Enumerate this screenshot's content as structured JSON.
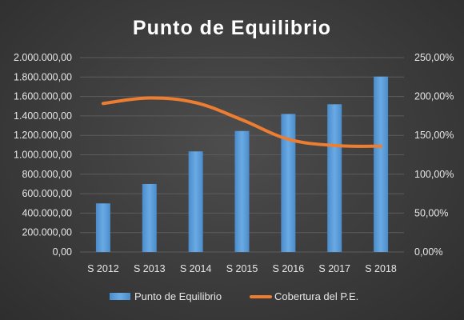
{
  "chart_data": {
    "type": "bar",
    "title": "Punto de Equilibrio",
    "categories": [
      "S 2012",
      "S 2013",
      "S 2014",
      "S 2015",
      "S 2016",
      "S 2017",
      "S 2018"
    ],
    "y_left": {
      "min": 0,
      "max": 2000000,
      "step": 200000,
      "tick_labels": [
        "0,00",
        "200.000,00",
        "400.000,00",
        "600.000,00",
        "800.000,00",
        "1.000.000,00",
        "1.200.000,00",
        "1.400.000,00",
        "1.600.000,00",
        "1.800.000,00",
        "2.000.000,00"
      ]
    },
    "y_right": {
      "min": 0,
      "max": 250,
      "step": 50,
      "unit": "%",
      "tick_labels": [
        "0,00%",
        "50,00%",
        "100,00%",
        "150,00%",
        "200,00%",
        "250,00%"
      ]
    },
    "series": [
      {
        "name": "Punto de Equilibrio",
        "type": "bar",
        "axis": "left",
        "color": "#5b9bd5",
        "values": [
          500000,
          700000,
          1035000,
          1245000,
          1420000,
          1520000,
          1805000
        ]
      },
      {
        "name": "Cobertura del P.E.",
        "type": "line",
        "axis": "right",
        "color": "#ed7d31",
        "values": [
          191,
          198,
          192,
          170,
          145,
          137,
          136
        ]
      }
    ],
    "grid": true,
    "legend": "bottom"
  }
}
